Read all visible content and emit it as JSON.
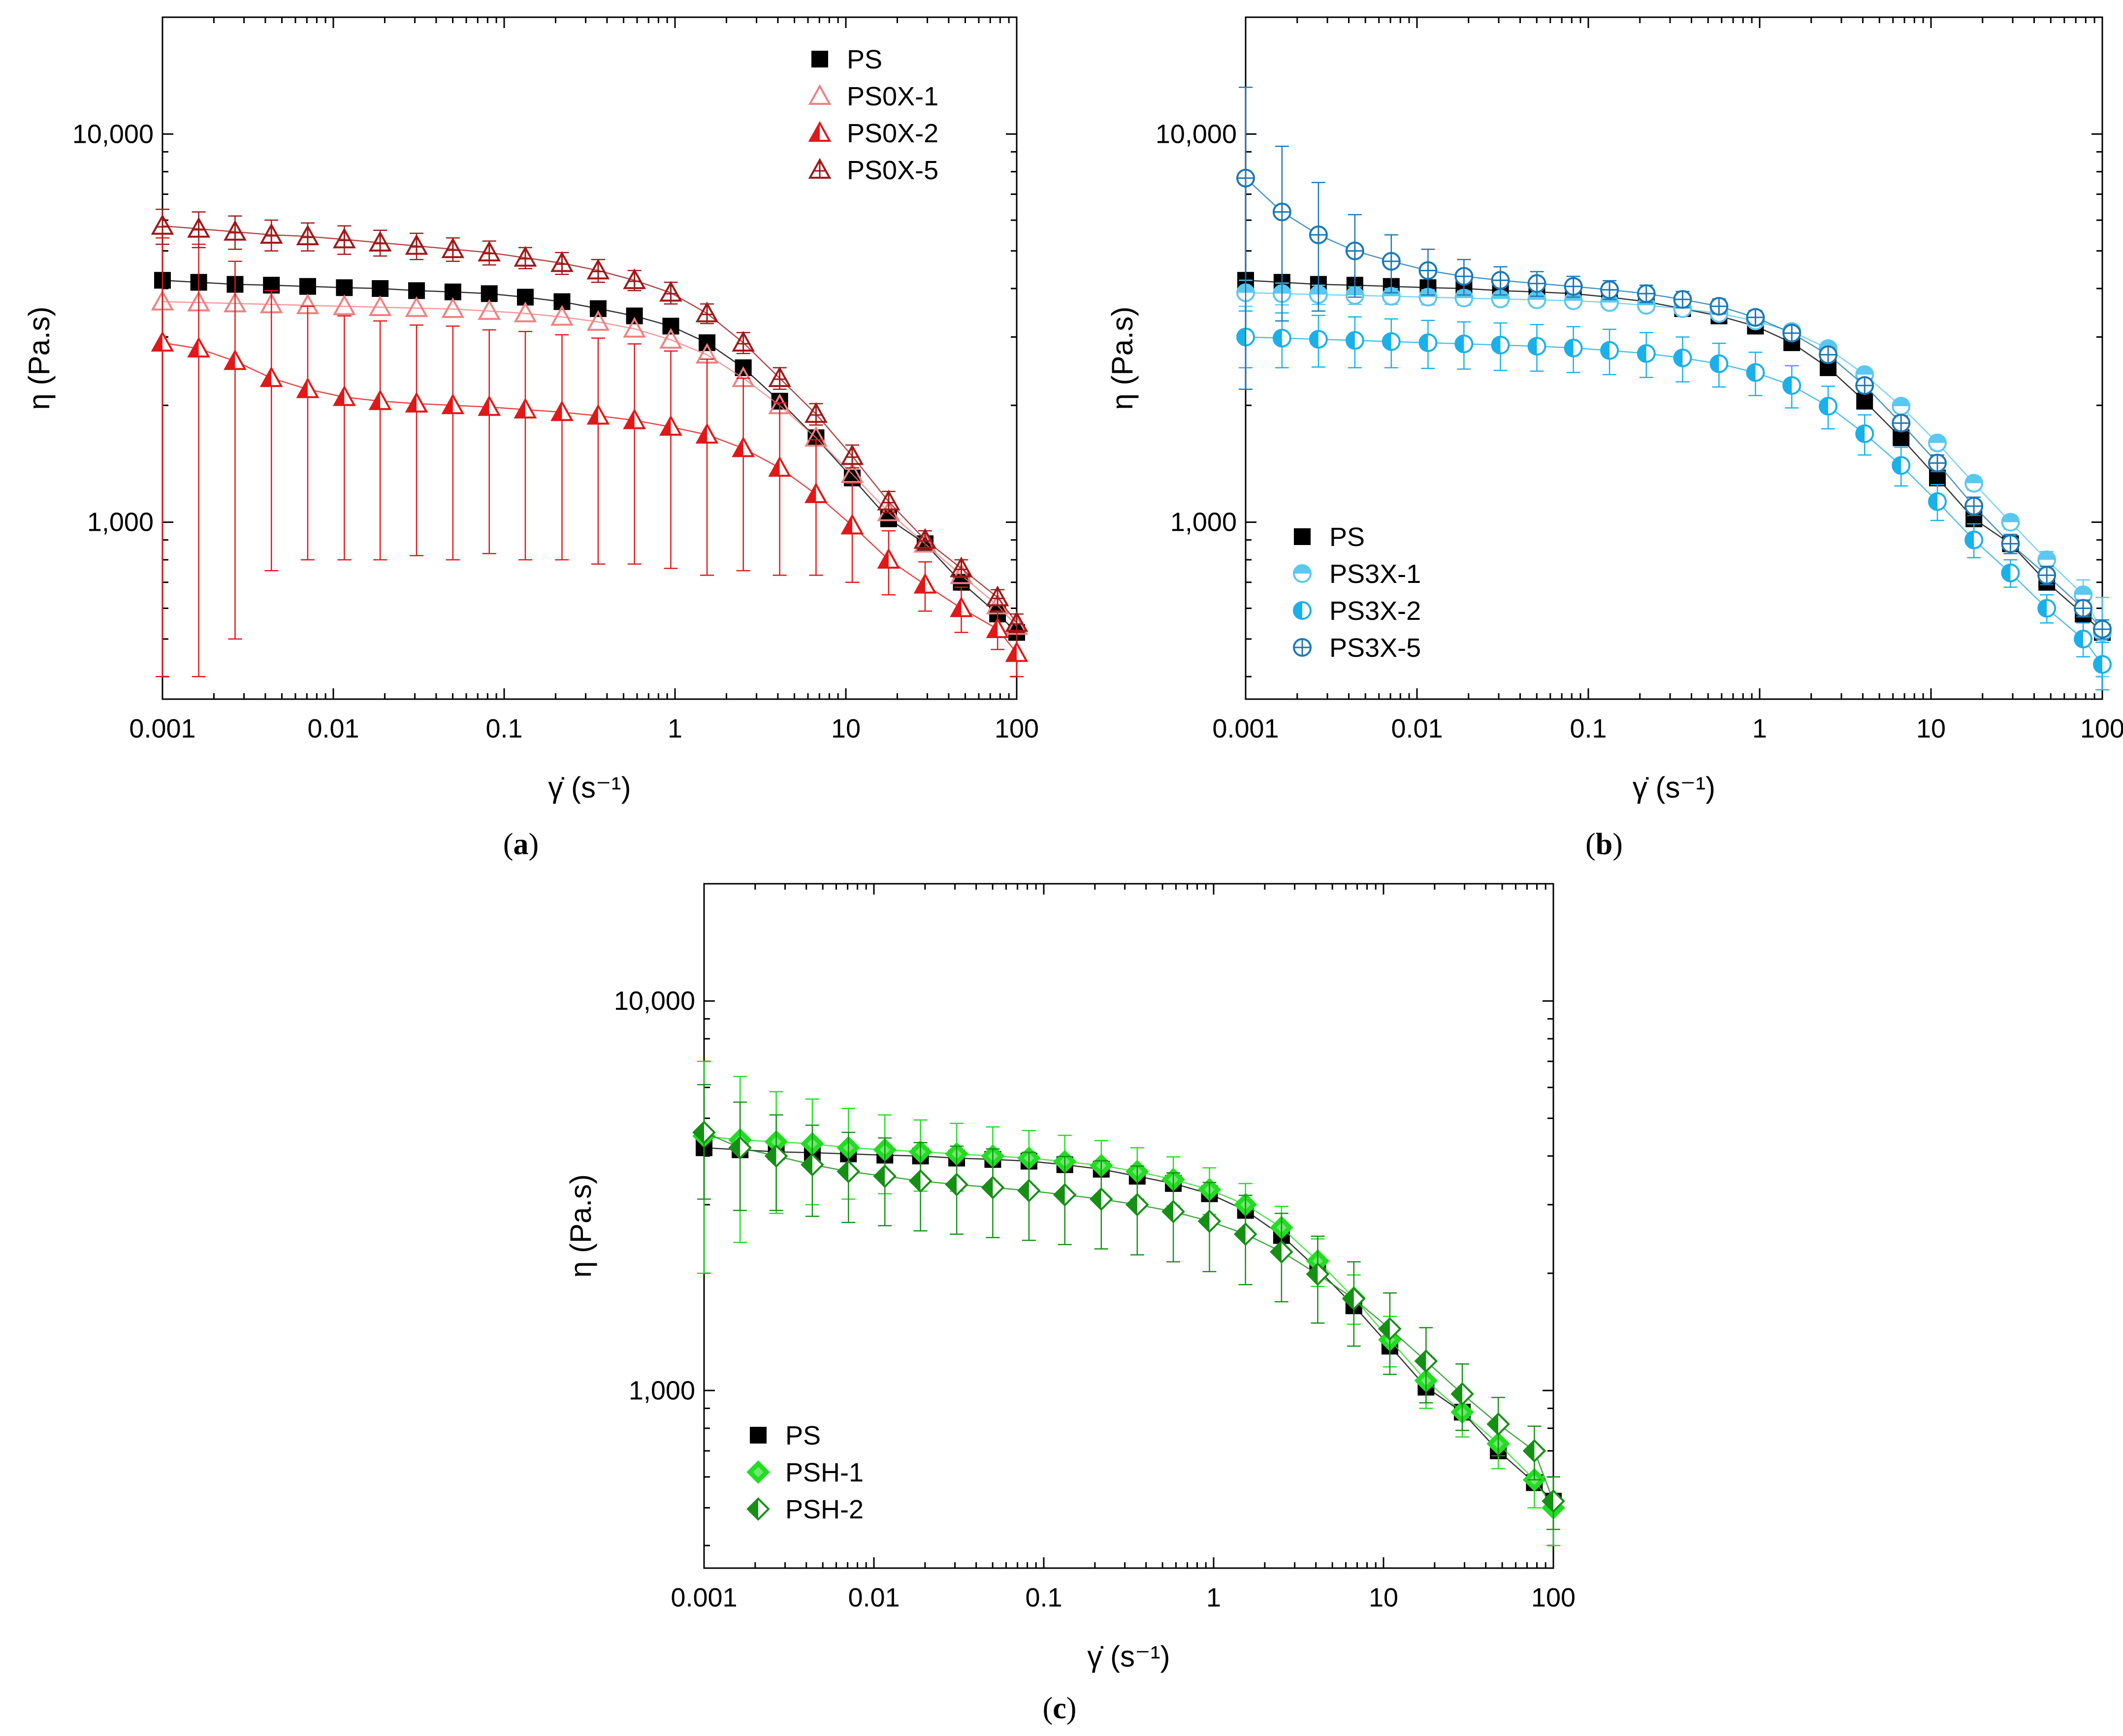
{
  "panels": [
    {
      "panel_label": "a",
      "ylabel": "η (Pa.s)",
      "xlabel": "γ̇ (s⁻¹)"
    },
    {
      "panel_label": "b",
      "ylabel": "η (Pa.s)",
      "xlabel": "γ̇ (s⁻¹)"
    },
    {
      "panel_label": "c",
      "ylabel": "η (Pa.s)",
      "xlabel": "γ̇ (s⁻¹)"
    }
  ],
  "chart_data": [
    {
      "type": "scatter",
      "panel": "a",
      "xlabel": "γ̇ (s⁻¹)",
      "ylabel": "η (Pa.s)",
      "xscale": "log",
      "yscale": "log",
      "xlim": [
        0.001,
        100
      ],
      "ylim": [
        350,
        20000
      ],
      "xticks": [
        0.001,
        0.01,
        0.1,
        1,
        10,
        100
      ],
      "xtick_labels": [
        "0.001",
        "0.01",
        "0.1",
        "1",
        "10",
        "100"
      ],
      "yticks": [
        1000,
        10000
      ],
      "ytick_labels": [
        "1,000",
        "10,000"
      ],
      "legend_position": "top-right",
      "x": [
        0.001,
        0.00163,
        0.00266,
        0.00434,
        0.00708,
        0.0116,
        0.0188,
        0.0307,
        0.0501,
        0.0818,
        0.133,
        0.218,
        0.355,
        0.579,
        0.945,
        1.54,
        2.51,
        4.1,
        6.69,
        10.9,
        17.8,
        29.1,
        47.4,
        77.3,
        100
      ],
      "series": [
        {
          "name": "PS",
          "color": "#000000",
          "marker": "square",
          "values": [
            4200,
            4150,
            4100,
            4080,
            4050,
            4020,
            4000,
            3950,
            3920,
            3880,
            3800,
            3700,
            3550,
            3400,
            3200,
            2900,
            2500,
            2050,
            1650,
            1300,
            1020,
            880,
            700,
            580,
            520
          ],
          "errors": []
        },
        {
          "name": "PS0X-1",
          "color": "#f08080",
          "marker": "triangle-open",
          "values": [
            3700,
            3680,
            3660,
            3640,
            3620,
            3600,
            3580,
            3560,
            3540,
            3500,
            3450,
            3380,
            3280,
            3150,
            2950,
            2700,
            2350,
            2000,
            1650,
            1330,
            1060,
            880,
            730,
            610,
            540
          ],
          "errors": []
        },
        {
          "name": "PS0X-2",
          "color": "#e01818",
          "marker": "triangle-half",
          "values": [
            2900,
            2800,
            2600,
            2350,
            2200,
            2100,
            2050,
            2020,
            2000,
            1980,
            1950,
            1920,
            1880,
            1830,
            1760,
            1680,
            1550,
            1380,
            1180,
            980,
            800,
            690,
            600,
            530,
            460
          ],
          "errors": [
            2500,
            2400,
            2100,
            1600,
            1400,
            1300,
            1250,
            1200,
            1200,
            1150,
            1150,
            1120,
            1100,
            1050,
            1000,
            950,
            800,
            650,
            450,
            280,
            150,
            100,
            80,
            60,
            60
          ]
        },
        {
          "name": "PS0X-5",
          "color": "#a01818",
          "marker": "triangle-cross",
          "values": [
            5800,
            5700,
            5600,
            5500,
            5450,
            5350,
            5250,
            5150,
            5050,
            4950,
            4800,
            4650,
            4450,
            4200,
            3900,
            3450,
            2900,
            2350,
            1900,
            1480,
            1130,
            900,
            760,
            640,
            550
          ],
          "errors": [
            600,
            600,
            550,
            500,
            450,
            450,
            400,
            400,
            350,
            350,
            300,
            300,
            300,
            250,
            250,
            200,
            180,
            150,
            120,
            100,
            70,
            50,
            40,
            30,
            30
          ]
        }
      ]
    },
    {
      "type": "scatter",
      "panel": "b",
      "xlabel": "γ̇ (s⁻¹)",
      "ylabel": "η (Pa.s)",
      "xscale": "log",
      "yscale": "log",
      "xlim": [
        0.001,
        100
      ],
      "ylim": [
        350,
        20000
      ],
      "xticks": [
        0.001,
        0.01,
        0.1,
        1,
        10,
        100
      ],
      "xtick_labels": [
        "0.001",
        "0.01",
        "0.1",
        "1",
        "10",
        "100"
      ],
      "yticks": [
        1000,
        10000
      ],
      "ytick_labels": [
        "1,000",
        "10,000"
      ],
      "legend_position": "bottom-left",
      "x": [
        0.001,
        0.00163,
        0.00266,
        0.00434,
        0.00708,
        0.0116,
        0.0188,
        0.0307,
        0.0501,
        0.0818,
        0.133,
        0.218,
        0.355,
        0.579,
        0.945,
        1.54,
        2.51,
        4.1,
        6.69,
        10.9,
        17.8,
        29.1,
        47.4,
        77.3,
        100
      ],
      "series": [
        {
          "name": "PS",
          "color": "#000000",
          "marker": "square",
          "values": [
            4200,
            4150,
            4100,
            4080,
            4050,
            4020,
            4000,
            3950,
            3920,
            3880,
            3800,
            3700,
            3550,
            3400,
            3200,
            2900,
            2500,
            2050,
            1650,
            1300,
            1020,
            880,
            700,
            580,
            520
          ],
          "errors": []
        },
        {
          "name": "PS3X-1",
          "color": "#5ac8f0",
          "marker": "circle-top-half",
          "values": [
            3900,
            3880,
            3860,
            3840,
            3820,
            3800,
            3780,
            3760,
            3740,
            3720,
            3680,
            3620,
            3550,
            3450,
            3300,
            3100,
            2800,
            2400,
            1990,
            1600,
            1260,
            1000,
            800,
            650,
            520
          ],
          "errors": [
            300,
            250,
            220,
            200,
            180,
            170,
            160,
            150,
            140,
            130,
            130,
            120,
            120,
            110,
            100,
            100,
            90,
            80,
            70,
            60,
            50,
            40,
            40,
            60,
            120
          ]
        },
        {
          "name": "PS3X-2",
          "color": "#1ab0ea",
          "marker": "circle-left-half",
          "values": [
            3000,
            2980,
            2960,
            2940,
            2920,
            2900,
            2880,
            2860,
            2840,
            2810,
            2770,
            2720,
            2650,
            2560,
            2430,
            2250,
            1990,
            1690,
            1400,
            1130,
            900,
            740,
            600,
            500,
            430
          ],
          "errors": [
            500,
            480,
            450,
            440,
            420,
            410,
            400,
            400,
            390,
            380,
            370,
            360,
            350,
            330,
            310,
            280,
            250,
            200,
            160,
            120,
            90,
            60,
            50,
            50,
            60
          ]
        },
        {
          "name": "PS3X-5",
          "color": "#1a78b8",
          "marker": "circle-cross",
          "values": [
            7700,
            6300,
            5500,
            5000,
            4700,
            4450,
            4300,
            4200,
            4120,
            4050,
            3970,
            3880,
            3750,
            3600,
            3370,
            3070,
            2700,
            2250,
            1800,
            1420,
            1100,
            880,
            730,
            600,
            530
          ],
          "errors": [
            5500,
            3000,
            2000,
            1200,
            800,
            600,
            450,
            350,
            300,
            250,
            220,
            200,
            180,
            160,
            140,
            120,
            100,
            90,
            80,
            70,
            60,
            50,
            40,
            30,
            30
          ]
        }
      ]
    },
    {
      "type": "scatter",
      "panel": "c",
      "xlabel": "γ̇ (s⁻¹)",
      "ylabel": "η (Pa.s)",
      "xscale": "log",
      "yscale": "log",
      "xlim": [
        0.001,
        100
      ],
      "ylim": [
        350,
        20000
      ],
      "xticks": [
        0.001,
        0.01,
        0.1,
        1,
        10,
        100
      ],
      "xtick_labels": [
        "0.001",
        "0.01",
        "0.1",
        "1",
        "10",
        "100"
      ],
      "yticks": [
        1000,
        10000
      ],
      "ytick_labels": [
        "1,000",
        "10,000"
      ],
      "legend_position": "bottom-left",
      "x": [
        0.001,
        0.00163,
        0.00266,
        0.00434,
        0.00708,
        0.0116,
        0.0188,
        0.0307,
        0.0501,
        0.0818,
        0.133,
        0.218,
        0.355,
        0.579,
        0.945,
        1.54,
        2.51,
        4.1,
        6.69,
        10.9,
        17.8,
        29.1,
        47.4,
        77.3,
        100
      ],
      "series": [
        {
          "name": "PS",
          "color": "#000000",
          "marker": "square",
          "values": [
            4200,
            4150,
            4100,
            4080,
            4050,
            4020,
            4000,
            3950,
            3920,
            3880,
            3800,
            3700,
            3550,
            3400,
            3200,
            2900,
            2500,
            2050,
            1650,
            1300,
            1020,
            880,
            700,
            580,
            520
          ],
          "errors": []
        },
        {
          "name": "PSH-1",
          "color": "#22dd22",
          "marker": "diamond",
          "values": [
            4500,
            4400,
            4350,
            4300,
            4200,
            4150,
            4100,
            4050,
            4000,
            3950,
            3870,
            3780,
            3650,
            3480,
            3280,
            3000,
            2620,
            2150,
            1730,
            1350,
            1060,
            880,
            730,
            590,
            500
          ],
          "errors": [
            2500,
            2000,
            1500,
            1300,
            1100,
            950,
            850,
            800,
            750,
            700,
            650,
            600,
            550,
            500,
            450,
            400,
            350,
            300,
            250,
            200,
            160,
            120,
            100,
            90,
            100
          ]
        },
        {
          "name": "PSH-2",
          "color": "#159015",
          "marker": "diamond-half",
          "values": [
            4600,
            4200,
            4000,
            3800,
            3650,
            3550,
            3450,
            3380,
            3320,
            3260,
            3180,
            3100,
            3000,
            2880,
            2720,
            2520,
            2270,
            1990,
            1720,
            1440,
            1190,
            980,
            820,
            700,
            520
          ],
          "errors": [
            1500,
            1300,
            1100,
            1000,
            950,
            900,
            880,
            860,
            850,
            830,
            810,
            790,
            770,
            740,
            700,
            650,
            580,
            500,
            420,
            340,
            260,
            190,
            140,
            110,
            80
          ]
        }
      ]
    }
  ]
}
